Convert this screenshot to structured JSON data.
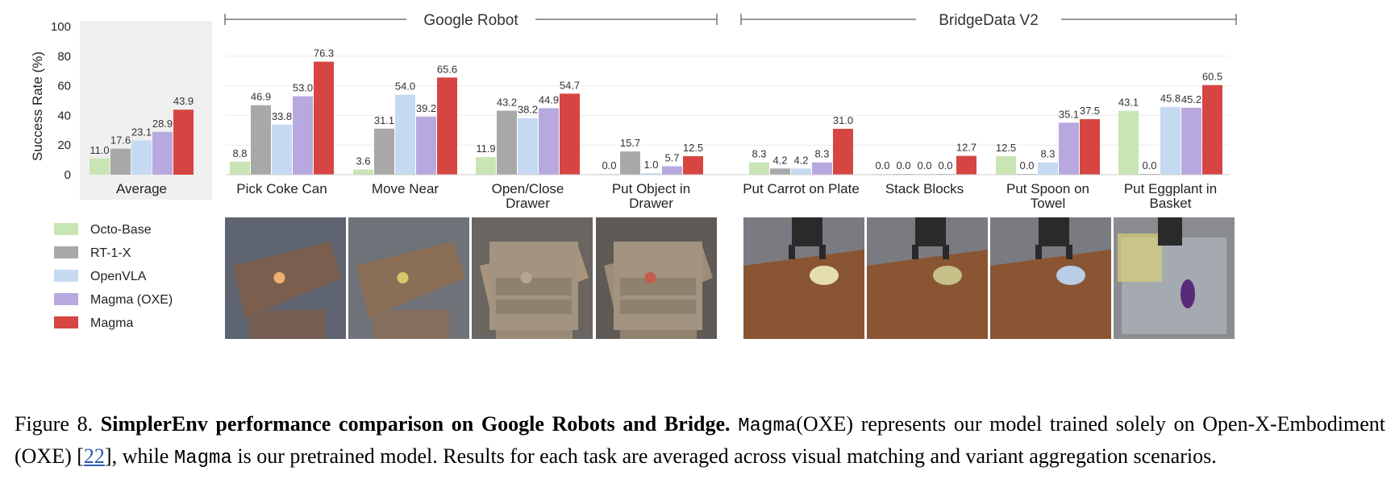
{
  "chart_data": {
    "type": "bar",
    "ylabel": "Success Rate (%)",
    "ylim": [
      0,
      100
    ],
    "yticks": [
      "0",
      "20",
      "40",
      "60",
      "80",
      "100"
    ],
    "grid": true,
    "legend_position": "bottom-left",
    "groups": [
      {
        "label": "Google Robot",
        "categories": [
          "Pick Coke Can",
          "Move Near",
          "Open/Close Drawer",
          "Put Object in Drawer"
        ]
      },
      {
        "label": "BridgeData V2",
        "categories": [
          "Put Carrot on Plate",
          "Stack Blocks",
          "Put Spoon on Towel",
          "Put Eggplant in Basket"
        ]
      }
    ],
    "categories": [
      "Average",
      "Pick Coke Can",
      "Move Near",
      "Open/Close Drawer",
      "Put Object in Drawer",
      "Put Carrot on Plate",
      "Stack Blocks",
      "Put Spoon on Towel",
      "Put Eggplant in Basket"
    ],
    "category_lines": [
      [
        "Average"
      ],
      [
        "Pick Coke Can"
      ],
      [
        "Move Near"
      ],
      [
        "Open/Close",
        "Drawer"
      ],
      [
        "Put Object in",
        "Drawer"
      ],
      [
        "Put Carrot on Plate"
      ],
      [
        "Stack Blocks"
      ],
      [
        "Put Spoon on",
        "Towel"
      ],
      [
        "Put Eggplant in",
        "Basket"
      ]
    ],
    "series": [
      {
        "name": "Octo-Base",
        "color": "#c9e5b5",
        "values": [
          11.0,
          8.8,
          3.6,
          11.9,
          0.0,
          8.3,
          0.0,
          12.5,
          43.1
        ],
        "labels": [
          "11.0",
          "8.8",
          "3.6",
          "11.9",
          "0.0",
          "8.3",
          "0.0",
          "12.5",
          "43.1"
        ]
      },
      {
        "name": "RT-1-X",
        "color": "#a8a8a8",
        "values": [
          17.6,
          46.9,
          31.1,
          43.2,
          15.7,
          4.2,
          0.0,
          0.0,
          0.0
        ],
        "labels": [
          "17.6",
          "46.9",
          "31.1",
          "43.2",
          "15.7",
          "4.2",
          "0.0",
          "0.0",
          "0.0"
        ]
      },
      {
        "name": "OpenVLA",
        "color": "#c5daf0",
        "values": [
          23.1,
          33.8,
          54.0,
          38.2,
          1.0,
          4.2,
          0.0,
          8.3,
          45.8
        ],
        "labels": [
          "23.1",
          "33.8",
          "54.0",
          "38.2",
          "1.0",
          "4.2",
          "0.0",
          "8.3",
          "45.8"
        ]
      },
      {
        "name": "Magma (OXE)",
        "color": "#b7a8e0",
        "values": [
          28.9,
          53.0,
          39.2,
          44.9,
          5.7,
          8.3,
          0.0,
          35.1,
          45.2
        ],
        "labels": [
          "28.9",
          "53.0",
          "39.2",
          "44.9",
          "5.7",
          "8.3",
          "0.0",
          "35.1",
          "45.2"
        ]
      },
      {
        "name": "Magma",
        "color": "#d64541",
        "values": [
          43.9,
          76.3,
          65.6,
          54.7,
          12.5,
          31.0,
          12.7,
          37.5,
          60.5
        ],
        "labels": [
          "43.9",
          "76.3",
          "65.6",
          "54.7",
          "12.5",
          "31.0",
          "12.7",
          "37.5",
          "60.5"
        ]
      }
    ]
  },
  "thumbnails": [
    {
      "name": "pick-coke-can",
      "colors": [
        "#5e6470",
        "#7a5e4e"
      ],
      "prop": "#f0b070"
    },
    {
      "name": "move-near",
      "colors": [
        "#6f7278",
        "#8a6e56"
      ],
      "prop": "#d8c86a"
    },
    {
      "name": "open-close-drawer",
      "colors": [
        "#6a6560",
        "#a8957c"
      ],
      "prop": "#b7a58e"
    },
    {
      "name": "put-object-in-drawer",
      "colors": [
        "#5f5a56",
        "#9e8c76"
      ],
      "prop": "#c65a4c"
    },
    {
      "name": "put-carrot-on-plate",
      "colors": [
        "#7a7b80",
        "#8a5532"
      ],
      "prop": "#e3ddb0"
    },
    {
      "name": "stack-blocks",
      "colors": [
        "#7a7b80",
        "#8a5532"
      ],
      "prop": "#c6c089"
    },
    {
      "name": "put-spoon-on-towel",
      "colors": [
        "#7a7b80",
        "#8a5532"
      ],
      "prop": "#b8cde6"
    },
    {
      "name": "put-eggplant-in-basket",
      "colors": [
        "#8a8c90",
        "#a4aab0"
      ],
      "prop": "#5a2a7a"
    }
  ],
  "caption": {
    "figure_label": "Figure 8.",
    "bold": "SimplerEnv performance comparison on Google Robots and Bridge.",
    "mono1": "Magma",
    "text1": "(OXE) represents our model trained solely on Open-X-Embodiment (OXE) [",
    "ref": "22",
    "text2": "], while",
    "mono2": "Magma",
    "text3": "is our pretrained model. Results for each task are averaged across visual matching and variant aggregation scenarios."
  }
}
